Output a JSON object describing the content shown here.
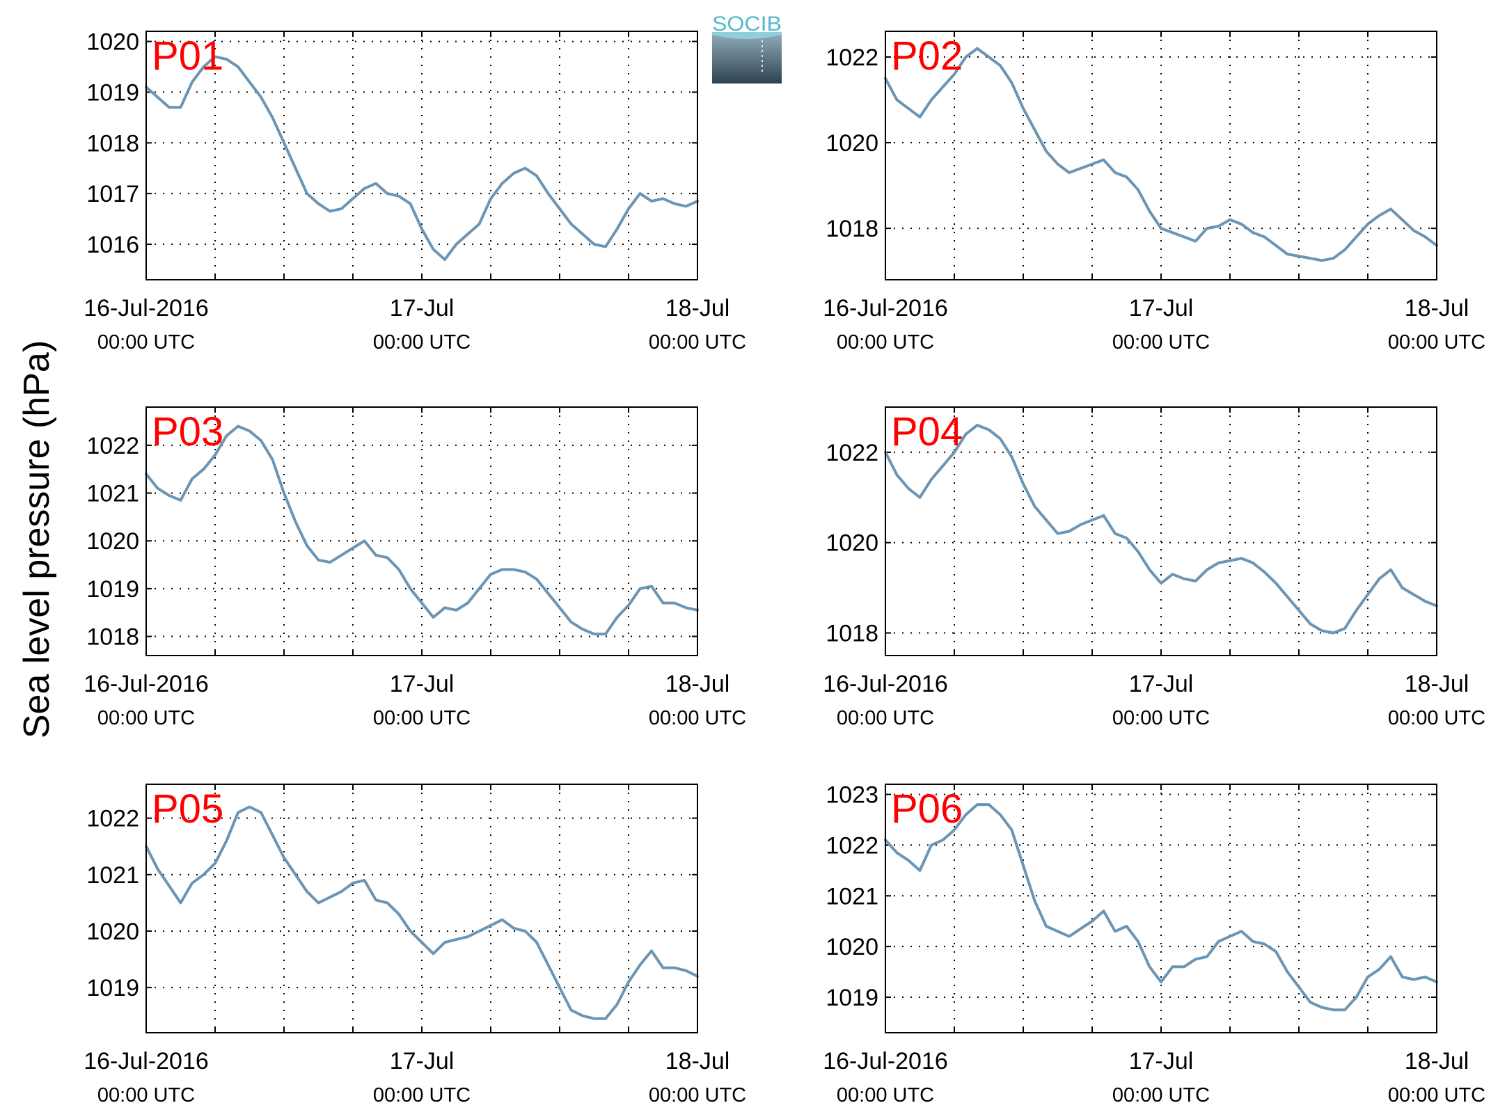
{
  "figure": {
    "ylabel": "Sea level pressure (hPa)",
    "logo_text": "SOCIB",
    "colors": {
      "line": "#6b95b5",
      "panel_label": "#ff0000",
      "grid": "#000000"
    }
  },
  "chart_data": [
    {
      "type": "line",
      "title": "P01",
      "xticks": [
        {
          "top": "16-Jul-2016",
          "bottom": "00:00 UTC"
        },
        {
          "top": "17-Jul",
          "bottom": "00:00 UTC"
        },
        {
          "top": "18-Jul",
          "bottom": "00:00 UTC"
        }
      ],
      "xlim": [
        0,
        48
      ],
      "ylim": [
        1015.3,
        1020.2
      ],
      "yticks": [
        1016,
        1017,
        1018,
        1019,
        1020
      ],
      "grid": true,
      "x": [
        0,
        1,
        2,
        3,
        4,
        5,
        6,
        7,
        8,
        9,
        10,
        11,
        12,
        13,
        14,
        15,
        16,
        17,
        18,
        19,
        20,
        21,
        22,
        23,
        24,
        25,
        26,
        27,
        28,
        29,
        30,
        31,
        32,
        33,
        34,
        35,
        36,
        37,
        38,
        39,
        40,
        41,
        42,
        43,
        44,
        45,
        46,
        47,
        48
      ],
      "values": [
        1019.1,
        1018.9,
        1018.7,
        1018.7,
        1019.2,
        1019.5,
        1019.7,
        1019.65,
        1019.5,
        1019.2,
        1018.9,
        1018.5,
        1018.0,
        1017.5,
        1017.0,
        1016.8,
        1016.65,
        1016.7,
        1016.9,
        1017.1,
        1017.2,
        1017.0,
        1016.95,
        1016.8,
        1016.3,
        1015.9,
        1015.7,
        1016.0,
        1016.2,
        1016.4,
        1016.9,
        1017.2,
        1017.4,
        1017.5,
        1017.35,
        1017.0,
        1016.7,
        1016.4,
        1016.2,
        1016.0,
        1015.95,
        1016.3,
        1016.7,
        1017.0,
        1016.85,
        1016.9,
        1016.8,
        1016.75,
        1016.85
      ]
    },
    {
      "type": "line",
      "title": "P02",
      "xticks": [
        {
          "top": "16-Jul-2016",
          "bottom": "00:00 UTC"
        },
        {
          "top": "17-Jul",
          "bottom": "00:00 UTC"
        },
        {
          "top": "18-Jul",
          "bottom": "00:00 UTC"
        }
      ],
      "xlim": [
        0,
        48
      ],
      "ylim": [
        1016.8,
        1022.6
      ],
      "yticks": [
        1018,
        1020,
        1022
      ],
      "grid": true,
      "x": [
        0,
        1,
        2,
        3,
        4,
        5,
        6,
        7,
        8,
        9,
        10,
        11,
        12,
        13,
        14,
        15,
        16,
        17,
        18,
        19,
        20,
        21,
        22,
        23,
        24,
        25,
        26,
        27,
        28,
        29,
        30,
        31,
        32,
        33,
        34,
        35,
        36,
        37,
        38,
        39,
        40,
        41,
        42,
        43,
        44,
        45,
        46,
        47,
        48
      ],
      "values": [
        1021.5,
        1021.0,
        1020.8,
        1020.6,
        1021.0,
        1021.3,
        1021.6,
        1022.0,
        1022.2,
        1022.0,
        1021.8,
        1021.4,
        1020.8,
        1020.3,
        1019.8,
        1019.5,
        1019.3,
        1019.4,
        1019.5,
        1019.6,
        1019.3,
        1019.2,
        1018.9,
        1018.4,
        1018.0,
        1017.9,
        1017.8,
        1017.7,
        1018.0,
        1018.05,
        1018.2,
        1018.1,
        1017.9,
        1017.8,
        1017.6,
        1017.4,
        1017.35,
        1017.3,
        1017.25,
        1017.3,
        1017.5,
        1017.8,
        1018.1,
        1018.3,
        1018.45,
        1018.2,
        1017.95,
        1017.8,
        1017.6
      ]
    },
    {
      "type": "line",
      "title": "P03",
      "xticks": [
        {
          "top": "16-Jul-2016",
          "bottom": "00:00 UTC"
        },
        {
          "top": "17-Jul",
          "bottom": "00:00 UTC"
        },
        {
          "top": "18-Jul",
          "bottom": "00:00 UTC"
        }
      ],
      "xlim": [
        0,
        48
      ],
      "ylim": [
        1017.6,
        1022.8
      ],
      "yticks": [
        1018,
        1019,
        1020,
        1021,
        1022
      ],
      "grid": true,
      "x": [
        0,
        1,
        2,
        3,
        4,
        5,
        6,
        7,
        8,
        9,
        10,
        11,
        12,
        13,
        14,
        15,
        16,
        17,
        18,
        19,
        20,
        21,
        22,
        23,
        24,
        25,
        26,
        27,
        28,
        29,
        30,
        31,
        32,
        33,
        34,
        35,
        36,
        37,
        38,
        39,
        40,
        41,
        42,
        43,
        44,
        45,
        46,
        47,
        48
      ],
      "values": [
        1021.4,
        1021.1,
        1020.95,
        1020.85,
        1021.3,
        1021.5,
        1021.8,
        1022.2,
        1022.4,
        1022.3,
        1022.1,
        1021.7,
        1021.0,
        1020.4,
        1019.9,
        1019.6,
        1019.55,
        1019.7,
        1019.85,
        1020.0,
        1019.7,
        1019.65,
        1019.4,
        1019.0,
        1018.7,
        1018.4,
        1018.6,
        1018.55,
        1018.7,
        1019.0,
        1019.3,
        1019.4,
        1019.4,
        1019.35,
        1019.2,
        1018.9,
        1018.6,
        1018.3,
        1018.15,
        1018.05,
        1018.05,
        1018.4,
        1018.65,
        1019.0,
        1019.05,
        1018.7,
        1018.7,
        1018.6,
        1018.55
      ]
    },
    {
      "type": "line",
      "title": "P04",
      "xticks": [
        {
          "top": "16-Jul-2016",
          "bottom": "00:00 UTC"
        },
        {
          "top": "17-Jul",
          "bottom": "00:00 UTC"
        },
        {
          "top": "18-Jul",
          "bottom": "00:00 UTC"
        }
      ],
      "xlim": [
        0,
        48
      ],
      "ylim": [
        1017.5,
        1023.0
      ],
      "yticks": [
        1018,
        1020,
        1022
      ],
      "grid": true,
      "x": [
        0,
        1,
        2,
        3,
        4,
        5,
        6,
        7,
        8,
        9,
        10,
        11,
        12,
        13,
        14,
        15,
        16,
        17,
        18,
        19,
        20,
        21,
        22,
        23,
        24,
        25,
        26,
        27,
        28,
        29,
        30,
        31,
        32,
        33,
        34,
        35,
        36,
        37,
        38,
        39,
        40,
        41,
        42,
        43,
        44,
        45,
        46,
        47,
        48
      ],
      "values": [
        1022.0,
        1021.5,
        1021.2,
        1021.0,
        1021.4,
        1021.7,
        1022.0,
        1022.4,
        1022.6,
        1022.5,
        1022.3,
        1021.9,
        1021.3,
        1020.8,
        1020.5,
        1020.2,
        1020.25,
        1020.4,
        1020.5,
        1020.6,
        1020.2,
        1020.1,
        1019.8,
        1019.4,
        1019.1,
        1019.3,
        1019.2,
        1019.15,
        1019.4,
        1019.55,
        1019.6,
        1019.65,
        1019.55,
        1019.35,
        1019.1,
        1018.8,
        1018.5,
        1018.2,
        1018.05,
        1018.0,
        1018.1,
        1018.5,
        1018.85,
        1019.2,
        1019.4,
        1019.0,
        1018.85,
        1018.7,
        1018.6
      ]
    },
    {
      "type": "line",
      "title": "P05",
      "xticks": [
        {
          "top": "16-Jul-2016",
          "bottom": "00:00 UTC"
        },
        {
          "top": "17-Jul",
          "bottom": "00:00 UTC"
        },
        {
          "top": "18-Jul",
          "bottom": "00:00 UTC"
        }
      ],
      "xlim": [
        0,
        48
      ],
      "ylim": [
        1018.2,
        1022.6
      ],
      "yticks": [
        1019,
        1020,
        1021,
        1022
      ],
      "grid": true,
      "x": [
        0,
        1,
        2,
        3,
        4,
        5,
        6,
        7,
        8,
        9,
        10,
        11,
        12,
        13,
        14,
        15,
        16,
        17,
        18,
        19,
        20,
        21,
        22,
        23,
        24,
        25,
        26,
        27,
        28,
        29,
        30,
        31,
        32,
        33,
        34,
        35,
        36,
        37,
        38,
        39,
        40,
        41,
        42,
        43,
        44,
        45,
        46,
        47,
        48
      ],
      "values": [
        1021.5,
        1021.1,
        1020.8,
        1020.5,
        1020.85,
        1021.0,
        1021.2,
        1021.6,
        1022.1,
        1022.2,
        1022.1,
        1021.7,
        1021.3,
        1021.0,
        1020.7,
        1020.5,
        1020.6,
        1020.7,
        1020.85,
        1020.9,
        1020.55,
        1020.5,
        1020.3,
        1020.0,
        1019.8,
        1019.6,
        1019.8,
        1019.85,
        1019.9,
        1020.0,
        1020.1,
        1020.2,
        1020.05,
        1020.0,
        1019.8,
        1019.4,
        1019.0,
        1018.6,
        1018.5,
        1018.45,
        1018.45,
        1018.7,
        1019.1,
        1019.4,
        1019.65,
        1019.35,
        1019.35,
        1019.3,
        1019.2
      ]
    },
    {
      "type": "line",
      "title": "P06",
      "xticks": [
        {
          "top": "16-Jul-2016",
          "bottom": "00:00 UTC"
        },
        {
          "top": "17-Jul",
          "bottom": "00:00 UTC"
        },
        {
          "top": "18-Jul",
          "bottom": "00:00 UTC"
        }
      ],
      "xlim": [
        0,
        48
      ],
      "ylim": [
        1018.3,
        1023.2
      ],
      "yticks": [
        1019,
        1020,
        1021,
        1022,
        1023
      ],
      "grid": true,
      "x": [
        0,
        1,
        2,
        3,
        4,
        5,
        6,
        7,
        8,
        9,
        10,
        11,
        12,
        13,
        14,
        15,
        16,
        17,
        18,
        19,
        20,
        21,
        22,
        23,
        24,
        25,
        26,
        27,
        28,
        29,
        30,
        31,
        32,
        33,
        34,
        35,
        36,
        37,
        38,
        39,
        40,
        41,
        42,
        43,
        44,
        45,
        46,
        47,
        48
      ],
      "values": [
        1022.1,
        1021.85,
        1021.7,
        1021.5,
        1022.0,
        1022.1,
        1022.3,
        1022.6,
        1022.8,
        1022.8,
        1022.6,
        1022.3,
        1021.6,
        1020.9,
        1020.4,
        1020.3,
        1020.2,
        1020.35,
        1020.5,
        1020.7,
        1020.3,
        1020.4,
        1020.1,
        1019.6,
        1019.3,
        1019.6,
        1019.6,
        1019.75,
        1019.8,
        1020.1,
        1020.2,
        1020.3,
        1020.1,
        1020.05,
        1019.9,
        1019.5,
        1019.2,
        1018.9,
        1018.8,
        1018.75,
        1018.75,
        1019.0,
        1019.4,
        1019.55,
        1019.8,
        1019.4,
        1019.35,
        1019.4,
        1019.3
      ]
    }
  ]
}
